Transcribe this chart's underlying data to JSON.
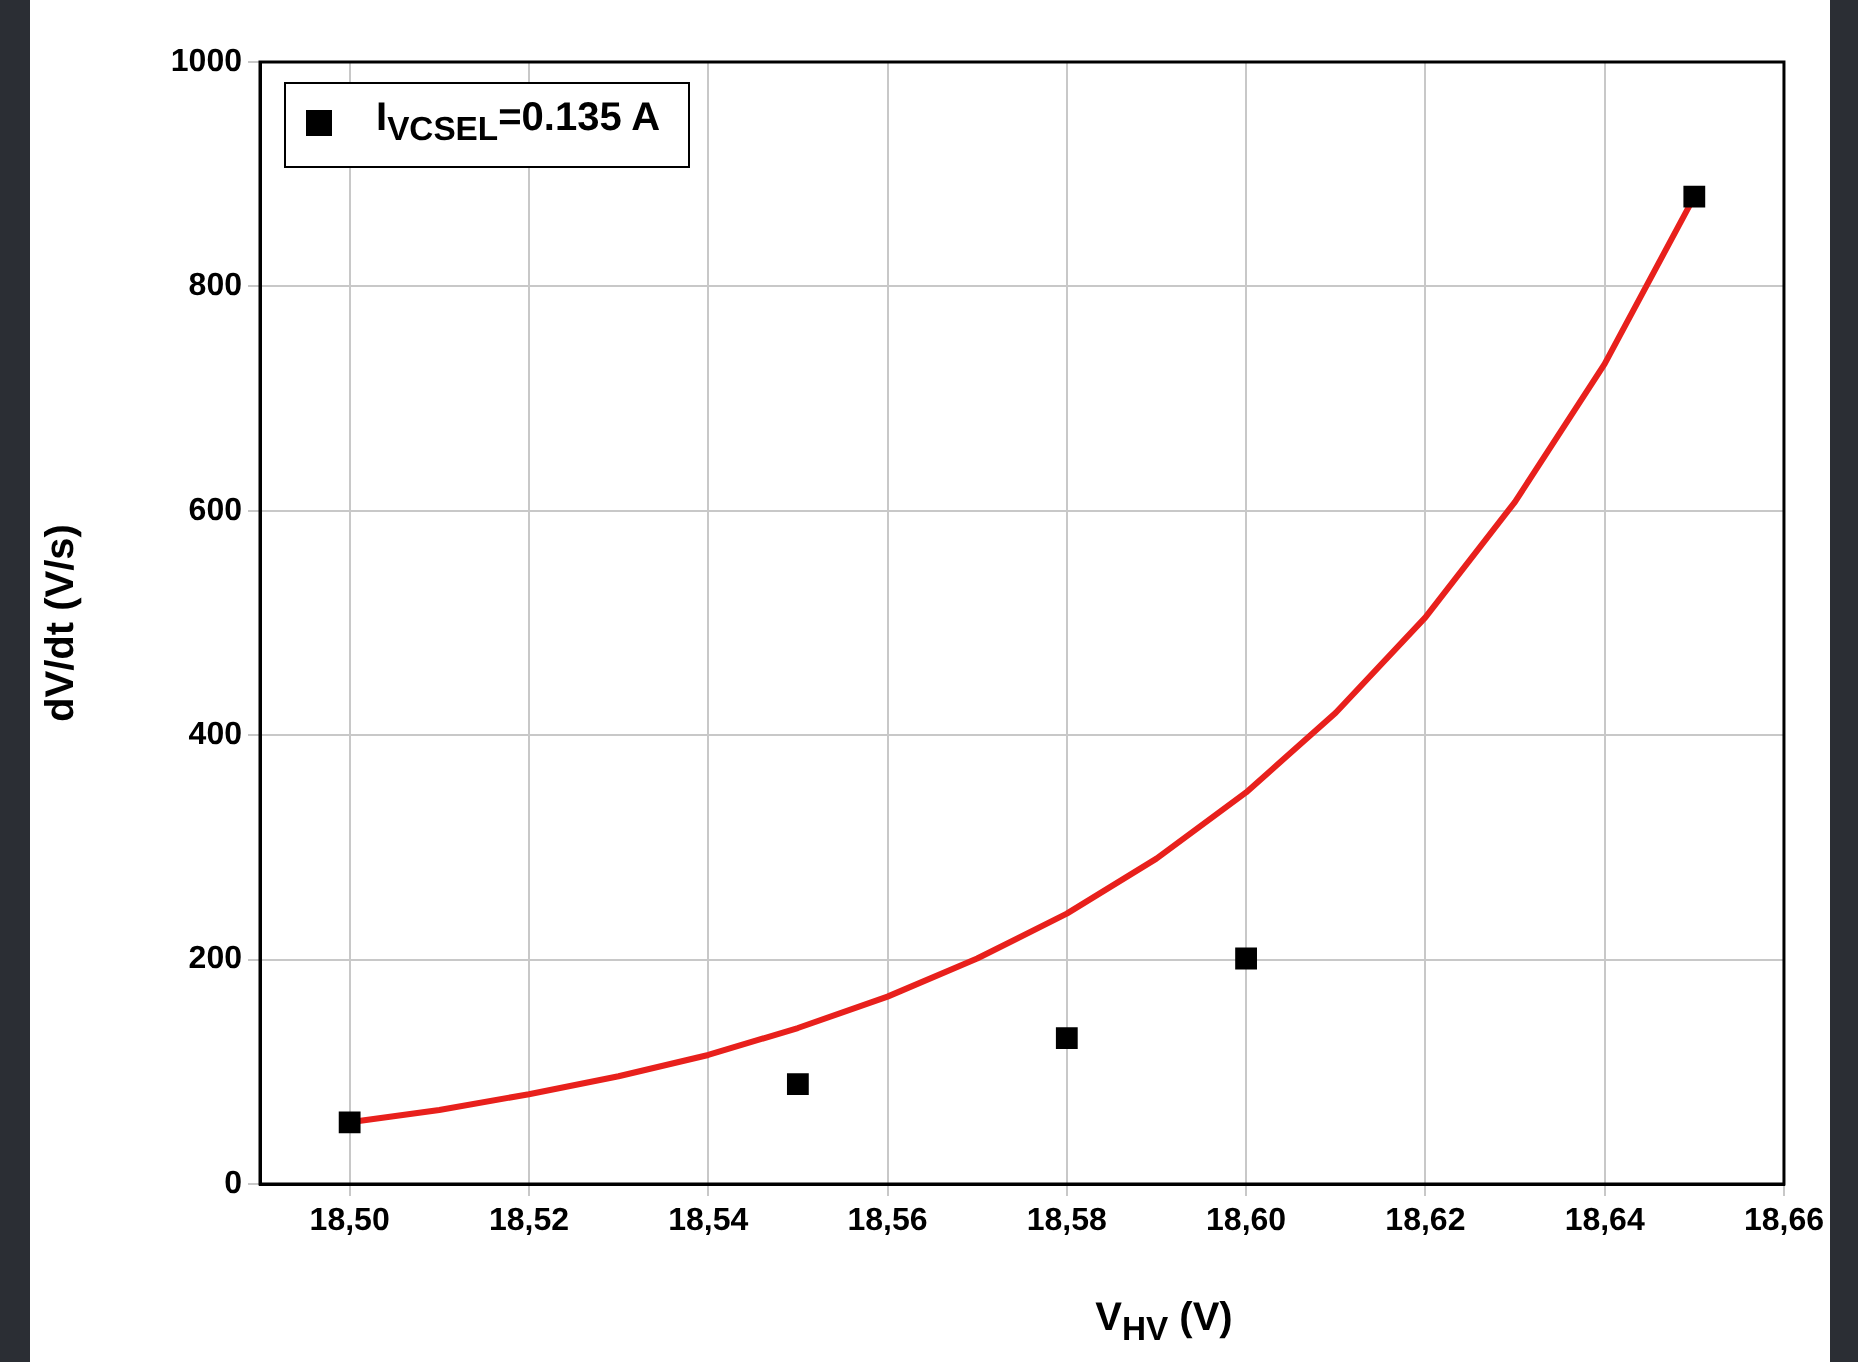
{
  "chart_data": {
    "type": "scatter",
    "xlabel": "V$_{HV}$ (V)",
    "ylabel": "dV/dt (V/s)",
    "xlim": [
      18.49,
      18.66
    ],
    "ylim": [
      0,
      1000
    ],
    "xticks": [
      {
        "value": 18.5,
        "label": "18,50"
      },
      {
        "value": 18.52,
        "label": "18,52"
      },
      {
        "value": 18.54,
        "label": "18,54"
      },
      {
        "value": 18.56,
        "label": "18,56"
      },
      {
        "value": 18.58,
        "label": "18,58"
      },
      {
        "value": 18.6,
        "label": "18,60"
      },
      {
        "value": 18.62,
        "label": "18,62"
      },
      {
        "value": 18.64,
        "label": "18,64"
      },
      {
        "value": 18.66,
        "label": "18,66"
      }
    ],
    "yticks": [
      0,
      200,
      400,
      600,
      800,
      1000
    ],
    "grid": true,
    "legend": "top left",
    "series": [
      {
        "name": "I$_{VCSEL}$=0.135 A",
        "marker": "square",
        "color": "#000000",
        "x": [
          18.5,
          18.55,
          18.58,
          18.6,
          18.65
        ],
        "values": [
          55,
          89,
          130,
          201,
          880
        ]
      },
      {
        "type": "line",
        "marker": "none",
        "color": "#e8201c",
        "x": [
          18.5,
          18.51,
          18.52,
          18.53,
          18.54,
          18.55,
          18.56,
          18.57,
          18.58,
          18.59,
          18.6,
          18.61,
          18.62,
          18.63,
          18.64,
          18.65
        ],
        "values": [
          55,
          66,
          80,
          96,
          115,
          139,
          167,
          201,
          241,
          290,
          349,
          420,
          505,
          608,
          731,
          880
        ]
      }
    ]
  }
}
